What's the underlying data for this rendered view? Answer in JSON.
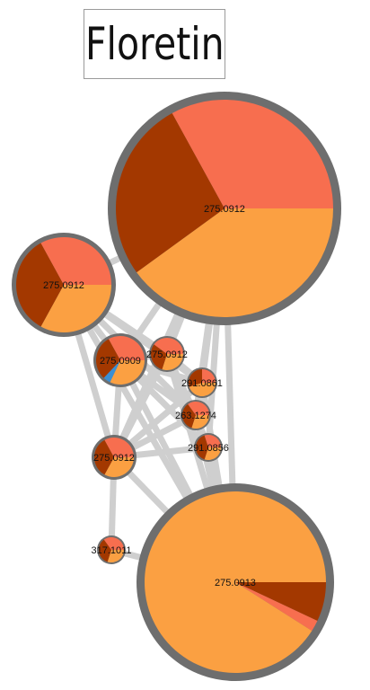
{
  "title": "Floretin",
  "colors": {
    "edge": "#cfcfcf",
    "ring": "#6e6e6e",
    "orange": "#fba042",
    "salmon": "#f76e4f",
    "brown": "#a33800",
    "blue": "#3b8fd4"
  },
  "nodes": [
    {
      "id": "n1",
      "label": "275.0912",
      "slices": [
        {
          "color": "orange",
          "frac": 0.4
        },
        {
          "color": "brown",
          "frac": 0.27
        },
        {
          "color": "salmon",
          "frac": 0.33
        }
      ]
    },
    {
      "id": "n2",
      "label": "275.0912",
      "slices": [
        {
          "color": "orange",
          "frac": 0.33
        },
        {
          "color": "brown",
          "frac": 0.34
        },
        {
          "color": "salmon",
          "frac": 0.33
        }
      ]
    },
    {
      "id": "n3",
      "label": "275.0909",
      "slices": [
        {
          "color": "orange",
          "frac": 0.32
        },
        {
          "color": "blue",
          "frac": 0.05
        },
        {
          "color": "brown",
          "frac": 0.3
        },
        {
          "color": "salmon",
          "frac": 0.33
        }
      ]
    },
    {
      "id": "n4",
      "label": "275.0912",
      "slices": [
        {
          "color": "orange",
          "frac": 0.3
        },
        {
          "color": "brown",
          "frac": 0.3
        },
        {
          "color": "salmon",
          "frac": 0.4
        }
      ]
    },
    {
      "id": "n5",
      "label": "291.0861",
      "slices": [
        {
          "color": "orange",
          "frac": 0.45
        },
        {
          "color": "brown",
          "frac": 0.3
        },
        {
          "color": "salmon",
          "frac": 0.25
        }
      ]
    },
    {
      "id": "n6",
      "label": "263.1274",
      "slices": [
        {
          "color": "orange",
          "frac": 0.3
        },
        {
          "color": "brown",
          "frac": 0.35
        },
        {
          "color": "salmon",
          "frac": 0.35
        }
      ]
    },
    {
      "id": "n7",
      "label": "291.0856",
      "slices": [
        {
          "color": "orange",
          "frac": 0.3
        },
        {
          "color": "brown",
          "frac": 0.4
        },
        {
          "color": "salmon",
          "frac": 0.3
        }
      ]
    },
    {
      "id": "n8",
      "label": "275.0912",
      "slices": [
        {
          "color": "orange",
          "frac": 0.33
        },
        {
          "color": "brown",
          "frac": 0.34
        },
        {
          "color": "salmon",
          "frac": 0.33
        }
      ]
    },
    {
      "id": "n9",
      "label": "317.1011",
      "slices": [
        {
          "color": "orange",
          "frac": 0.3
        },
        {
          "color": "brown",
          "frac": 0.35
        },
        {
          "color": "salmon",
          "frac": 0.35
        }
      ]
    },
    {
      "id": "n10",
      "label": "275.0913",
      "slices": [
        {
          "color": "brown",
          "frac": 0.07
        },
        {
          "color": "salmon",
          "frac": 0.02
        },
        {
          "color": "orange",
          "frac": 0.91
        }
      ]
    }
  ],
  "edges": [
    [
      "n1",
      "n2"
    ],
    [
      "n1",
      "n3"
    ],
    [
      "n1",
      "n4"
    ],
    [
      "n1",
      "n5"
    ],
    [
      "n1",
      "n6"
    ],
    [
      "n1",
      "n7"
    ],
    [
      "n1",
      "n8"
    ],
    [
      "n1",
      "n10"
    ],
    [
      "n2",
      "n3"
    ],
    [
      "n2",
      "n4"
    ],
    [
      "n2",
      "n5"
    ],
    [
      "n2",
      "n6"
    ],
    [
      "n2",
      "n8"
    ],
    [
      "n2",
      "n10"
    ],
    [
      "n3",
      "n4"
    ],
    [
      "n3",
      "n5"
    ],
    [
      "n3",
      "n6"
    ],
    [
      "n3",
      "n7"
    ],
    [
      "n3",
      "n8"
    ],
    [
      "n3",
      "n10"
    ],
    [
      "n4",
      "n5"
    ],
    [
      "n4",
      "n6"
    ],
    [
      "n4",
      "n7"
    ],
    [
      "n4",
      "n8"
    ],
    [
      "n4",
      "n10"
    ],
    [
      "n5",
      "n6"
    ],
    [
      "n5",
      "n8"
    ],
    [
      "n5",
      "n10"
    ],
    [
      "n6",
      "n7"
    ],
    [
      "n6",
      "n8"
    ],
    [
      "n6",
      "n10"
    ],
    [
      "n7",
      "n8"
    ],
    [
      "n7",
      "n10"
    ],
    [
      "n8",
      "n9"
    ],
    [
      "n8",
      "n10"
    ],
    [
      "n9",
      "n10"
    ]
  ]
}
